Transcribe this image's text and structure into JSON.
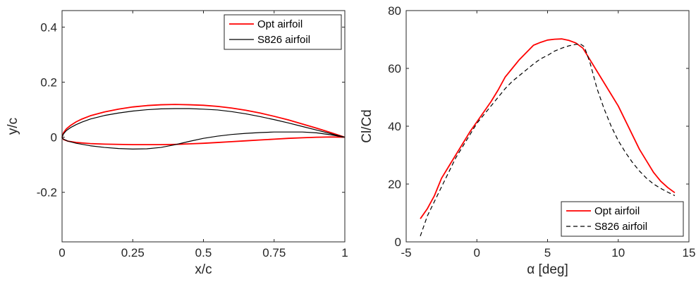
{
  "colors": {
    "opt": "#ff0000",
    "s826": "#000000",
    "axis": "#262626"
  },
  "chart_data": [
    {
      "type": "line",
      "xlabel": "x/c",
      "ylabel": "y/c",
      "xlim": [
        0,
        1
      ],
      "ylim": [
        -0.38,
        0.46
      ],
      "xticks": [
        0,
        0.25,
        0.5,
        0.75,
        1
      ],
      "xtick_labels": [
        "0",
        "0.25",
        "0.5",
        "0.75",
        "1"
      ],
      "yticks": [
        -0.2,
        0,
        0.2,
        0.4
      ],
      "ytick_labels": [
        "-0.2",
        "0",
        "0.2",
        "0.4"
      ],
      "legend_position": "top-right",
      "series": [
        {
          "name": "Opt airfoil",
          "color": "#ff0000",
          "style": "solid",
          "x": [
            1.0,
            0.95,
            0.9,
            0.85,
            0.8,
            0.75,
            0.7,
            0.65,
            0.6,
            0.55,
            0.5,
            0.45,
            0.4,
            0.35,
            0.3,
            0.25,
            0.2,
            0.15,
            0.1,
            0.07,
            0.05,
            0.03,
            0.015,
            0.005,
            0.0,
            0.005,
            0.02,
            0.05,
            0.1,
            0.15,
            0.2,
            0.25,
            0.3,
            0.35,
            0.4,
            0.45,
            0.5,
            0.55,
            0.6,
            0.65,
            0.7,
            0.75,
            0.8,
            0.85,
            0.9,
            0.95,
            1.0
          ],
          "y": [
            0.0,
            0.017,
            0.033,
            0.048,
            0.063,
            0.076,
            0.088,
            0.098,
            0.106,
            0.112,
            0.116,
            0.118,
            0.119,
            0.118,
            0.115,
            0.11,
            0.102,
            0.092,
            0.078,
            0.066,
            0.056,
            0.043,
            0.03,
            0.016,
            0.0,
            -0.008,
            -0.014,
            -0.019,
            -0.023,
            -0.025,
            -0.026,
            -0.027,
            -0.027,
            -0.027,
            -0.026,
            -0.024,
            -0.022,
            -0.019,
            -0.016,
            -0.013,
            -0.01,
            -0.007,
            -0.004,
            -0.002,
            0.0,
            0.001,
            0.0
          ]
        },
        {
          "name": "S826 airfoil",
          "color": "#000000",
          "style": "solid",
          "x": [
            1.0,
            0.95,
            0.9,
            0.85,
            0.8,
            0.75,
            0.7,
            0.65,
            0.6,
            0.55,
            0.5,
            0.45,
            0.4,
            0.35,
            0.3,
            0.25,
            0.2,
            0.15,
            0.1,
            0.07,
            0.05,
            0.03,
            0.015,
            0.005,
            0.0,
            0.005,
            0.02,
            0.05,
            0.1,
            0.15,
            0.2,
            0.25,
            0.3,
            0.35,
            0.4,
            0.45,
            0.5,
            0.55,
            0.6,
            0.65,
            0.7,
            0.75,
            0.8,
            0.85,
            0.9,
            0.95,
            1.0
          ],
          "y": [
            0.0,
            0.013,
            0.026,
            0.039,
            0.052,
            0.064,
            0.075,
            0.085,
            0.093,
            0.099,
            0.102,
            0.104,
            0.104,
            0.103,
            0.1,
            0.095,
            0.088,
            0.079,
            0.066,
            0.055,
            0.046,
            0.035,
            0.024,
            0.012,
            0.0,
            -0.007,
            -0.014,
            -0.022,
            -0.031,
            -0.037,
            -0.041,
            -0.043,
            -0.042,
            -0.037,
            -0.027,
            -0.015,
            -0.004,
            0.004,
            0.01,
            0.014,
            0.017,
            0.019,
            0.019,
            0.019,
            0.016,
            0.009,
            0.0
          ]
        }
      ]
    },
    {
      "type": "line",
      "xlabel": "α [deg]",
      "ylabel": "Cl/Cd",
      "xlim": [
        -5,
        15
      ],
      "ylim": [
        0,
        80
      ],
      "xticks": [
        -5,
        0,
        5,
        10,
        15
      ],
      "xtick_labels": [
        "-5",
        "0",
        "5",
        "10",
        "15"
      ],
      "yticks": [
        0,
        20,
        40,
        60,
        80
      ],
      "ytick_labels": [
        "0",
        "20",
        "40",
        "60",
        "80"
      ],
      "legend_position": "bottom-right",
      "series": [
        {
          "name": "Opt airfoil",
          "color": "#ff0000",
          "style": "solid",
          "x": [
            -4,
            -3.5,
            -3,
            -2.5,
            -2,
            -1.5,
            -1,
            -0.5,
            0,
            0.5,
            1,
            1.5,
            2,
            2.5,
            3,
            3.5,
            4,
            4.5,
            5,
            5.5,
            6,
            6.5,
            7,
            7.5,
            8,
            8.5,
            9,
            9.5,
            10,
            10.5,
            11,
            11.5,
            12,
            12.5,
            13,
            13.5,
            14
          ],
          "y": [
            8,
            11.5,
            16,
            22,
            26,
            30,
            34,
            38,
            41.5,
            45,
            48.5,
            52.5,
            57,
            60,
            63,
            65.5,
            68,
            69,
            69.8,
            70.1,
            70.2,
            69.7,
            68.8,
            67,
            63,
            59,
            55,
            51,
            47,
            42,
            37,
            32,
            28,
            24,
            21,
            18.8,
            17
          ]
        },
        {
          "name": "S826 airfoil",
          "color": "#000000",
          "style": "dashed",
          "x": [
            -4,
            -3.5,
            -3,
            -2.5,
            -2,
            -1.5,
            -1,
            -0.5,
            0,
            0.5,
            1,
            1.5,
            2,
            2.5,
            3,
            3.5,
            4,
            4.5,
            5,
            5.5,
            6,
            6.5,
            7,
            7.3,
            7.6,
            8,
            8.5,
            9,
            9.5,
            10,
            10.5,
            11,
            11.5,
            12,
            12.5,
            13,
            13.5,
            14
          ],
          "y": [
            2,
            9,
            14,
            19,
            24,
            29,
            33,
            37,
            41,
            44,
            47,
            50,
            53,
            55.5,
            57.5,
            59.5,
            61.5,
            63.3,
            64.5,
            66,
            67,
            67.8,
            68.3,
            68.5,
            67.5,
            62,
            53,
            46,
            40,
            35,
            31,
            27.5,
            24.5,
            22,
            20,
            18.5,
            17.2,
            16
          ]
        }
      ]
    }
  ]
}
